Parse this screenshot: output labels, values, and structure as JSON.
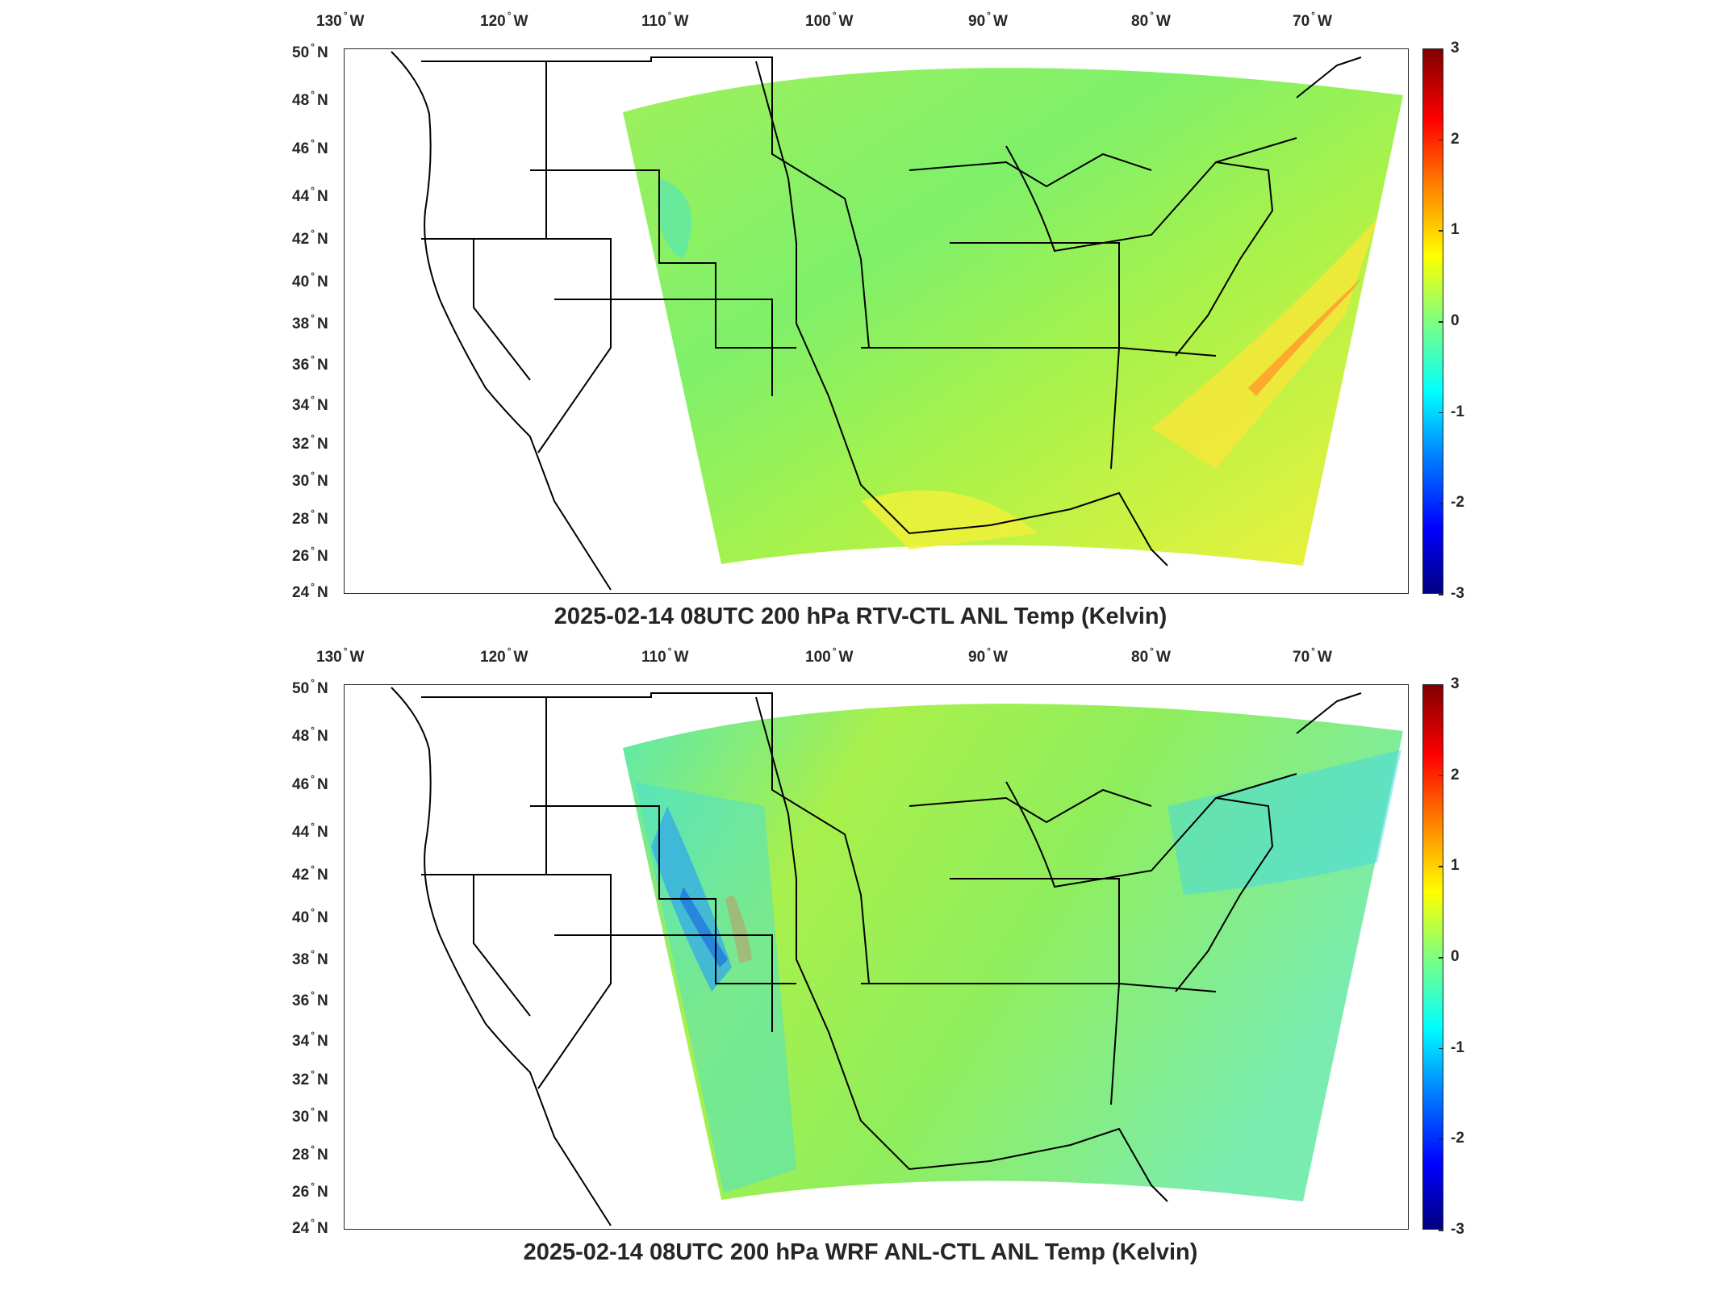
{
  "panels": [
    {
      "title": "2025-02-14 08UTC 200 hPa RTV-CTL ANL Temp (Kelvin)",
      "colorbar": {
        "min": -3,
        "max": 3,
        "ticks": [
          "3",
          "2",
          "1",
          "0",
          "-1",
          "-2",
          "-3"
        ]
      }
    },
    {
      "title": "2025-02-14 08UTC 200 hPa WRF ANL-CTL ANL Temp (Kelvin)",
      "colorbar": {
        "min": -3,
        "max": 3,
        "ticks": [
          "3",
          "2",
          "1",
          "0",
          "-1",
          "-2",
          "-3"
        ]
      }
    }
  ],
  "axes": {
    "lon_labels": [
      {
        "num": "130",
        "hem": "W"
      },
      {
        "num": "120",
        "hem": "W"
      },
      {
        "num": "110",
        "hem": "W"
      },
      {
        "num": "100",
        "hem": "W"
      },
      {
        "num": "90",
        "hem": "W"
      },
      {
        "num": "80",
        "hem": "W"
      },
      {
        "num": "70",
        "hem": "W"
      }
    ],
    "lat_labels": [
      {
        "num": "50",
        "hem": "N"
      },
      {
        "num": "48",
        "hem": "N"
      },
      {
        "num": "46",
        "hem": "N"
      },
      {
        "num": "44",
        "hem": "N"
      },
      {
        "num": "42",
        "hem": "N"
      },
      {
        "num": "40",
        "hem": "N"
      },
      {
        "num": "38",
        "hem": "N"
      },
      {
        "num": "36",
        "hem": "N"
      },
      {
        "num": "34",
        "hem": "N"
      },
      {
        "num": "32",
        "hem": "N"
      },
      {
        "num": "30",
        "hem": "N"
      },
      {
        "num": "28",
        "hem": "N"
      },
      {
        "num": "26",
        "hem": "N"
      },
      {
        "num": "24",
        "hem": "N"
      }
    ]
  },
  "colors": {
    "field_base_top": "#7ff06a",
    "field_warm": "#f2f23a",
    "field_cool": "#3fe8c8",
    "field_hot": "#ff8a1a",
    "field_cold": "#0a2ad8",
    "coastline": "#000000"
  }
}
